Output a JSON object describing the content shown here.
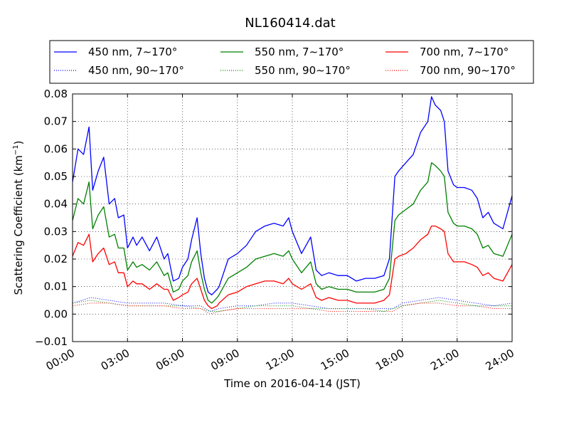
{
  "chart_data": {
    "type": "line",
    "title": "NL160414.dat",
    "xlabel": "Time on 2016-04-14 (JST)",
    "ylabel": "Scattering Coefficient (km",
    "ylabel_exponent": "−1",
    "ylabel_suffix": ")",
    "xlim": [
      0,
      24
    ],
    "ylim": [
      -0.01,
      0.08
    ],
    "grid": true,
    "legend_position": "top",
    "x_ticks": [
      {
        "value": 0,
        "label": "00:00"
      },
      {
        "value": 3,
        "label": "03:00"
      },
      {
        "value": 6,
        "label": "06:00"
      },
      {
        "value": 9,
        "label": "09:00"
      },
      {
        "value": 12,
        "label": "12:00"
      },
      {
        "value": 15,
        "label": "15:00"
      },
      {
        "value": 18,
        "label": "18:00"
      },
      {
        "value": 21,
        "label": "21:00"
      },
      {
        "value": 24,
        "label": "24:00"
      }
    ],
    "y_ticks": [
      {
        "value": -0.01,
        "label": "−0.01"
      },
      {
        "value": 0.0,
        "label": "0.00"
      },
      {
        "value": 0.01,
        "label": "0.01"
      },
      {
        "value": 0.02,
        "label": "0.02"
      },
      {
        "value": 0.03,
        "label": "0.03"
      },
      {
        "value": 0.04,
        "label": "0.04"
      },
      {
        "value": 0.05,
        "label": "0.05"
      },
      {
        "value": 0.06,
        "label": "0.06"
      },
      {
        "value": 0.07,
        "label": "0.07"
      },
      {
        "value": 0.08,
        "label": "0.08"
      }
    ],
    "series": [
      {
        "name": "450 nm, 7∼170°",
        "color": "#0000ff",
        "style": "solid",
        "x": [
          0,
          0.3,
          0.6,
          0.9,
          1.1,
          1.4,
          1.7,
          2.0,
          2.3,
          2.5,
          2.8,
          3.0,
          3.3,
          3.5,
          3.8,
          4.2,
          4.6,
          5.0,
          5.2,
          5.5,
          5.8,
          6.0,
          6.3,
          6.5,
          6.8,
          7.0,
          7.2,
          7.4,
          7.6,
          7.9,
          8.0,
          8.5,
          9.0,
          9.5,
          10.0,
          10.5,
          11.0,
          11.5,
          11.8,
          12.0,
          12.5,
          13.0,
          13.3,
          13.6,
          14.0,
          14.5,
          15.0,
          15.5,
          16.0,
          16.5,
          17.0,
          17.3,
          17.6,
          17.8,
          18.2,
          18.6,
          19.0,
          19.4,
          19.6,
          19.8,
          20.1,
          20.3,
          20.5,
          20.8,
          21.0,
          21.4,
          21.8,
          22.1,
          22.4,
          22.7,
          23.0,
          23.5,
          24.0
        ],
        "y": [
          0.048,
          0.06,
          0.058,
          0.068,
          0.045,
          0.052,
          0.057,
          0.04,
          0.042,
          0.035,
          0.036,
          0.024,
          0.028,
          0.025,
          0.028,
          0.023,
          0.028,
          0.02,
          0.022,
          0.012,
          0.013,
          0.017,
          0.02,
          0.027,
          0.035,
          0.022,
          0.013,
          0.008,
          0.007,
          0.009,
          0.01,
          0.02,
          0.022,
          0.025,
          0.03,
          0.032,
          0.033,
          0.032,
          0.035,
          0.03,
          0.022,
          0.028,
          0.016,
          0.014,
          0.015,
          0.014,
          0.014,
          0.012,
          0.013,
          0.013,
          0.014,
          0.02,
          0.05,
          0.052,
          0.055,
          0.058,
          0.066,
          0.07,
          0.079,
          0.076,
          0.074,
          0.07,
          0.052,
          0.047,
          0.046,
          0.046,
          0.045,
          0.042,
          0.035,
          0.037,
          0.033,
          0.031,
          0.043
        ]
      },
      {
        "name": "550 nm, 7∼170°",
        "color": "#008000",
        "style": "solid",
        "x": [
          0,
          0.3,
          0.6,
          0.9,
          1.1,
          1.4,
          1.7,
          2.0,
          2.3,
          2.5,
          2.8,
          3.0,
          3.3,
          3.5,
          3.8,
          4.2,
          4.6,
          5.0,
          5.2,
          5.5,
          5.8,
          6.0,
          6.3,
          6.5,
          6.8,
          7.0,
          7.2,
          7.4,
          7.6,
          7.9,
          8.0,
          8.5,
          9.0,
          9.5,
          10.0,
          10.5,
          11.0,
          11.5,
          11.8,
          12.0,
          12.5,
          13.0,
          13.3,
          13.6,
          14.0,
          14.5,
          15.0,
          15.5,
          16.0,
          16.5,
          17.0,
          17.3,
          17.6,
          17.8,
          18.2,
          18.6,
          19.0,
          19.4,
          19.6,
          19.8,
          20.1,
          20.3,
          20.5,
          20.8,
          21.0,
          21.4,
          21.8,
          22.1,
          22.4,
          22.7,
          23.0,
          23.5,
          24.0
        ],
        "y": [
          0.034,
          0.042,
          0.04,
          0.048,
          0.031,
          0.036,
          0.039,
          0.028,
          0.029,
          0.024,
          0.024,
          0.016,
          0.019,
          0.017,
          0.018,
          0.016,
          0.019,
          0.014,
          0.015,
          0.008,
          0.009,
          0.012,
          0.014,
          0.019,
          0.023,
          0.015,
          0.009,
          0.005,
          0.004,
          0.006,
          0.007,
          0.013,
          0.015,
          0.017,
          0.02,
          0.021,
          0.022,
          0.021,
          0.023,
          0.02,
          0.015,
          0.019,
          0.011,
          0.009,
          0.01,
          0.009,
          0.009,
          0.008,
          0.008,
          0.008,
          0.009,
          0.013,
          0.034,
          0.036,
          0.038,
          0.04,
          0.045,
          0.048,
          0.055,
          0.054,
          0.052,
          0.05,
          0.037,
          0.033,
          0.032,
          0.032,
          0.031,
          0.029,
          0.024,
          0.025,
          0.022,
          0.021,
          0.029
        ]
      },
      {
        "name": "700 nm, 7∼170°",
        "color": "#ff0000",
        "style": "solid",
        "x": [
          0,
          0.3,
          0.6,
          0.9,
          1.1,
          1.4,
          1.7,
          2.0,
          2.3,
          2.5,
          2.8,
          3.0,
          3.3,
          3.5,
          3.8,
          4.2,
          4.6,
          5.0,
          5.2,
          5.5,
          5.8,
          6.0,
          6.3,
          6.5,
          6.8,
          7.0,
          7.2,
          7.4,
          7.6,
          7.9,
          8.0,
          8.5,
          9.0,
          9.5,
          10.0,
          10.5,
          11.0,
          11.5,
          11.8,
          12.0,
          12.5,
          13.0,
          13.3,
          13.6,
          14.0,
          14.5,
          15.0,
          15.5,
          16.0,
          16.5,
          17.0,
          17.3,
          17.6,
          17.8,
          18.2,
          18.6,
          19.0,
          19.4,
          19.6,
          19.8,
          20.1,
          20.3,
          20.5,
          20.8,
          21.0,
          21.4,
          21.8,
          22.1,
          22.4,
          22.7,
          23.0,
          23.5,
          24.0
        ],
        "y": [
          0.021,
          0.026,
          0.025,
          0.029,
          0.019,
          0.022,
          0.024,
          0.018,
          0.019,
          0.015,
          0.015,
          0.01,
          0.012,
          0.011,
          0.011,
          0.009,
          0.011,
          0.009,
          0.009,
          0.005,
          0.006,
          0.007,
          0.008,
          0.011,
          0.013,
          0.009,
          0.005,
          0.003,
          0.002,
          0.003,
          0.004,
          0.007,
          0.008,
          0.01,
          0.011,
          0.012,
          0.012,
          0.011,
          0.013,
          0.011,
          0.009,
          0.011,
          0.006,
          0.005,
          0.006,
          0.005,
          0.005,
          0.004,
          0.004,
          0.004,
          0.005,
          0.007,
          0.02,
          0.021,
          0.022,
          0.024,
          0.027,
          0.029,
          0.032,
          0.032,
          0.031,
          0.03,
          0.022,
          0.019,
          0.019,
          0.019,
          0.018,
          0.017,
          0.014,
          0.015,
          0.013,
          0.012,
          0.018
        ]
      },
      {
        "name": "450 nm, 90∼170°",
        "color": "#0000ff",
        "style": "dotted",
        "x": [
          0,
          1,
          2,
          3,
          4,
          5,
          6,
          7,
          7.5,
          8,
          9,
          10,
          11,
          12,
          13,
          14,
          15,
          16,
          17,
          17.5,
          18,
          19,
          20,
          21,
          22,
          23,
          24
        ],
        "y": [
          0.004,
          0.006,
          0.005,
          0.004,
          0.004,
          0.004,
          0.003,
          0.003,
          0.001,
          0.002,
          0.003,
          0.003,
          0.004,
          0.004,
          0.003,
          0.002,
          0.002,
          0.002,
          0.002,
          0.002,
          0.004,
          0.005,
          0.006,
          0.005,
          0.004,
          0.003,
          0.004
        ]
      },
      {
        "name": "550 nm, 90∼170°",
        "color": "#008000",
        "style": "dotted",
        "x": [
          0,
          1,
          2,
          3,
          4,
          5,
          6,
          7,
          7.5,
          8,
          9,
          10,
          11,
          12,
          13,
          14,
          15,
          16,
          17,
          17.5,
          18,
          19,
          20,
          21,
          22,
          23,
          24
        ],
        "y": [
          0.004,
          0.005,
          0.004,
          0.003,
          0.003,
          0.003,
          0.003,
          0.002,
          0.001,
          0.001,
          0.002,
          0.003,
          0.003,
          0.003,
          0.002,
          0.002,
          0.002,
          0.002,
          0.001,
          0.002,
          0.003,
          0.004,
          0.005,
          0.004,
          0.003,
          0.003,
          0.003
        ]
      },
      {
        "name": "700 nm, 90∼170°",
        "color": "#ff0000",
        "style": "dotted",
        "x": [
          0,
          1,
          2,
          3,
          4,
          5,
          6,
          7,
          7.5,
          8,
          9,
          10,
          11,
          12,
          13,
          14,
          15,
          16,
          17,
          17.5,
          18,
          19,
          20,
          21,
          22,
          23,
          24
        ],
        "y": [
          0.003,
          0.004,
          0.004,
          0.003,
          0.003,
          0.003,
          0.002,
          0.002,
          0.0,
          0.001,
          0.002,
          0.002,
          0.002,
          0.002,
          0.002,
          0.001,
          0.001,
          0.001,
          0.001,
          0.001,
          0.003,
          0.004,
          0.004,
          0.003,
          0.003,
          0.002,
          0.002
        ]
      }
    ]
  }
}
